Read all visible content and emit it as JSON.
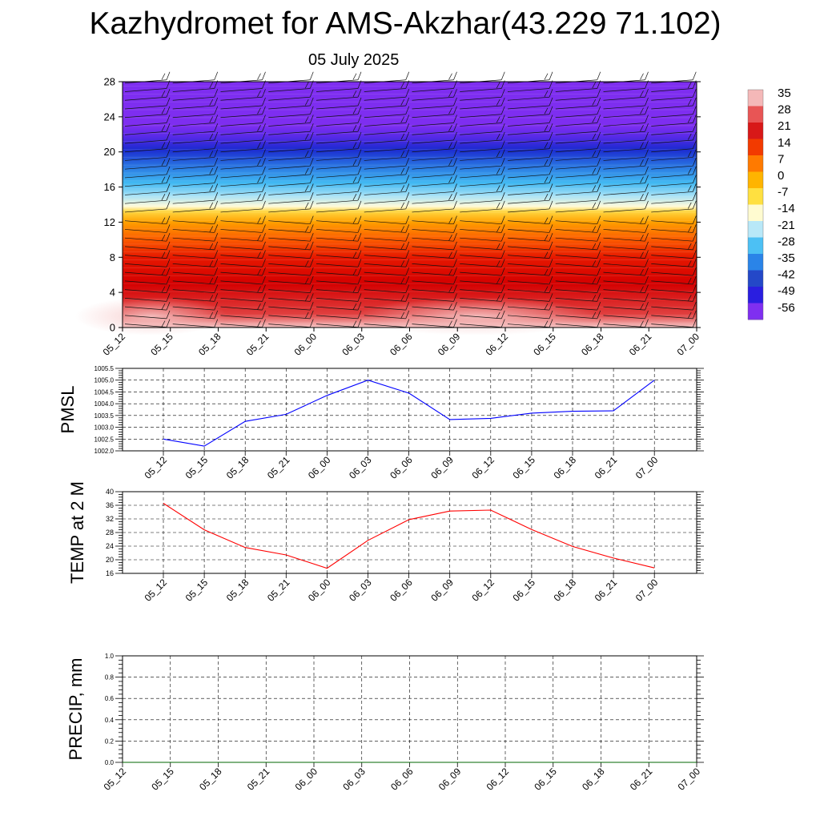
{
  "title": "Kazhydromet for AMS-Akzhar(43.229 71.102)",
  "date": "05 July 2025",
  "chart_data": [
    {
      "type": "heatmap",
      "yticks": [
        0,
        4,
        8,
        12,
        16,
        20,
        24,
        28
      ],
      "ylim": [
        0,
        28
      ],
      "xticks": [
        "05_12",
        "05_15",
        "05_18",
        "05_21",
        "06_00",
        "06_03",
        "06_06",
        "06_09",
        "06_12",
        "06_15",
        "06_18",
        "06_21",
        "07_00"
      ],
      "colorbar": {
        "labels": [
          "35",
          "28",
          "21",
          "14",
          "7",
          "0",
          "-7",
          "-14",
          "-21",
          "-28",
          "-35",
          "-42",
          "-49",
          "-56"
        ],
        "colors": [
          "#f4b8b8",
          "#e85555",
          "#d81818",
          "#f23a00",
          "#ff7a00",
          "#ffb400",
          "#ffe040",
          "#fffbd0",
          "#b8e8f8",
          "#4cc0f4",
          "#2a84e8",
          "#2448c8",
          "#2a1ee0",
          "#7f2ff0"
        ]
      },
      "level_colors": [
        {
          "y": 0,
          "color": "#f6c8c8"
        },
        {
          "y": 1.5,
          "color": "#e04040"
        },
        {
          "y": 5,
          "color": "#d40000"
        },
        {
          "y": 8,
          "color": "#e61800"
        },
        {
          "y": 10,
          "color": "#fb5a00"
        },
        {
          "y": 12,
          "color": "#ffa000"
        },
        {
          "y": 13.2,
          "color": "#ffd640"
        },
        {
          "y": 13.8,
          "color": "#fffad8"
        },
        {
          "y": 15,
          "color": "#a8e2f6"
        },
        {
          "y": 16.5,
          "color": "#40b8f2"
        },
        {
          "y": 18.5,
          "color": "#2870e0"
        },
        {
          "y": 20.3,
          "color": "#1c2ad0"
        },
        {
          "y": 21.8,
          "color": "#5a2ae8"
        },
        {
          "y": 23,
          "color": "#7e2ef0"
        },
        {
          "y": 28,
          "color": "#7e2ef0"
        }
      ]
    },
    {
      "type": "line",
      "ylabel": "PMSL",
      "ylim": [
        1002.0,
        1005.5
      ],
      "yticks": [
        "1002.0",
        "1002.5",
        "1003.0",
        "1003.5",
        "1004.0",
        "1004.5",
        "1005.0",
        "1005.5"
      ],
      "x": [
        "05_12",
        "05_15",
        "05_18",
        "05_21",
        "06_00",
        "06_03",
        "06_06",
        "06_09",
        "06_12",
        "06_15",
        "06_18",
        "06_21",
        "07_00"
      ],
      "values": [
        1002.5,
        1002.2,
        1003.25,
        1003.55,
        1004.35,
        1005.0,
        1004.45,
        1003.33,
        1003.38,
        1003.6,
        1003.68,
        1003.7,
        1005.0
      ],
      "color": "#0000ff"
    },
    {
      "type": "line",
      "ylabel": "TEMP at 2 M",
      "ylim": [
        16,
        40
      ],
      "yticks": [
        "16",
        "20",
        "24",
        "28",
        "32",
        "36",
        "40"
      ],
      "x": [
        "05_12",
        "05_15",
        "05_18",
        "05_21",
        "06_00",
        "06_03",
        "06_06",
        "06_09",
        "06_12",
        "06_15",
        "06_18",
        "06_21",
        "07_00"
      ],
      "values": [
        36.6,
        28.8,
        23.6,
        21.4,
        17.5,
        25.7,
        31.8,
        34.3,
        34.6,
        28.9,
        23.9,
        20.5,
        17.6
      ],
      "color": "#ff0000"
    },
    {
      "type": "line",
      "ylabel": "PRECIP, mm",
      "ylim": [
        0.0,
        1.0
      ],
      "yticks": [
        "0.0",
        "0.2",
        "0.4",
        "0.6",
        "0.8",
        "1.0"
      ],
      "x": [
        "05_12",
        "05_15",
        "05_18",
        "05_21",
        "06_00",
        "06_03",
        "06_06",
        "06_09",
        "06_12",
        "06_15",
        "06_18",
        "06_21",
        "07_00"
      ],
      "values": [
        0,
        0,
        0,
        0,
        0,
        0,
        0,
        0,
        0,
        0,
        0,
        0,
        0
      ],
      "color": "#006400"
    }
  ]
}
